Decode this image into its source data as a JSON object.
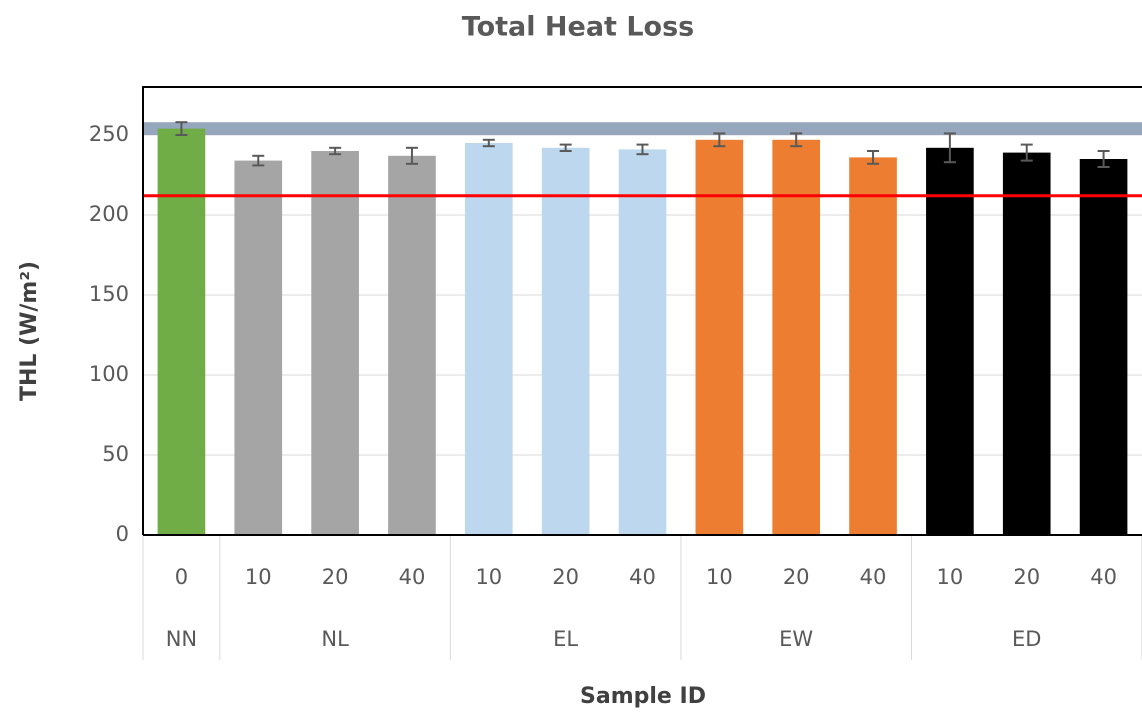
{
  "chart_data": {
    "type": "bar",
    "title": "Total Heat Loss",
    "y_label": "THL (W/m²)",
    "x_label": "Sample ID",
    "ylim": [
      0,
      280
    ],
    "yticks": [
      0,
      50,
      100,
      150,
      200,
      250
    ],
    "grid": true,
    "reference_line": {
      "value": 212,
      "color": "#ff0000"
    },
    "reference_band": {
      "range": [
        250,
        258
      ],
      "color": "#8497b0"
    },
    "groups": [
      {
        "name": "NN",
        "color": "#70ad47",
        "categories": [
          "0"
        ],
        "values": [
          254
        ],
        "errors": [
          4
        ]
      },
      {
        "name": "NL",
        "color": "#a5a5a5",
        "categories": [
          "10",
          "20",
          "40"
        ],
        "values": [
          234,
          240,
          237
        ],
        "errors": [
          3,
          2,
          5
        ]
      },
      {
        "name": "EL",
        "color": "#bdd7ee",
        "categories": [
          "10",
          "20",
          "40"
        ],
        "values": [
          245,
          242,
          241
        ],
        "errors": [
          2,
          2,
          3
        ]
      },
      {
        "name": "EW",
        "color": "#ed7d31",
        "categories": [
          "10",
          "20",
          "40"
        ],
        "values": [
          247,
          247,
          236
        ],
        "errors": [
          4,
          4,
          4
        ]
      },
      {
        "name": "ED",
        "color": "#000000",
        "categories": [
          "10",
          "20",
          "40"
        ],
        "values": [
          242,
          239,
          235
        ],
        "errors": [
          9,
          5,
          5
        ]
      }
    ]
  }
}
